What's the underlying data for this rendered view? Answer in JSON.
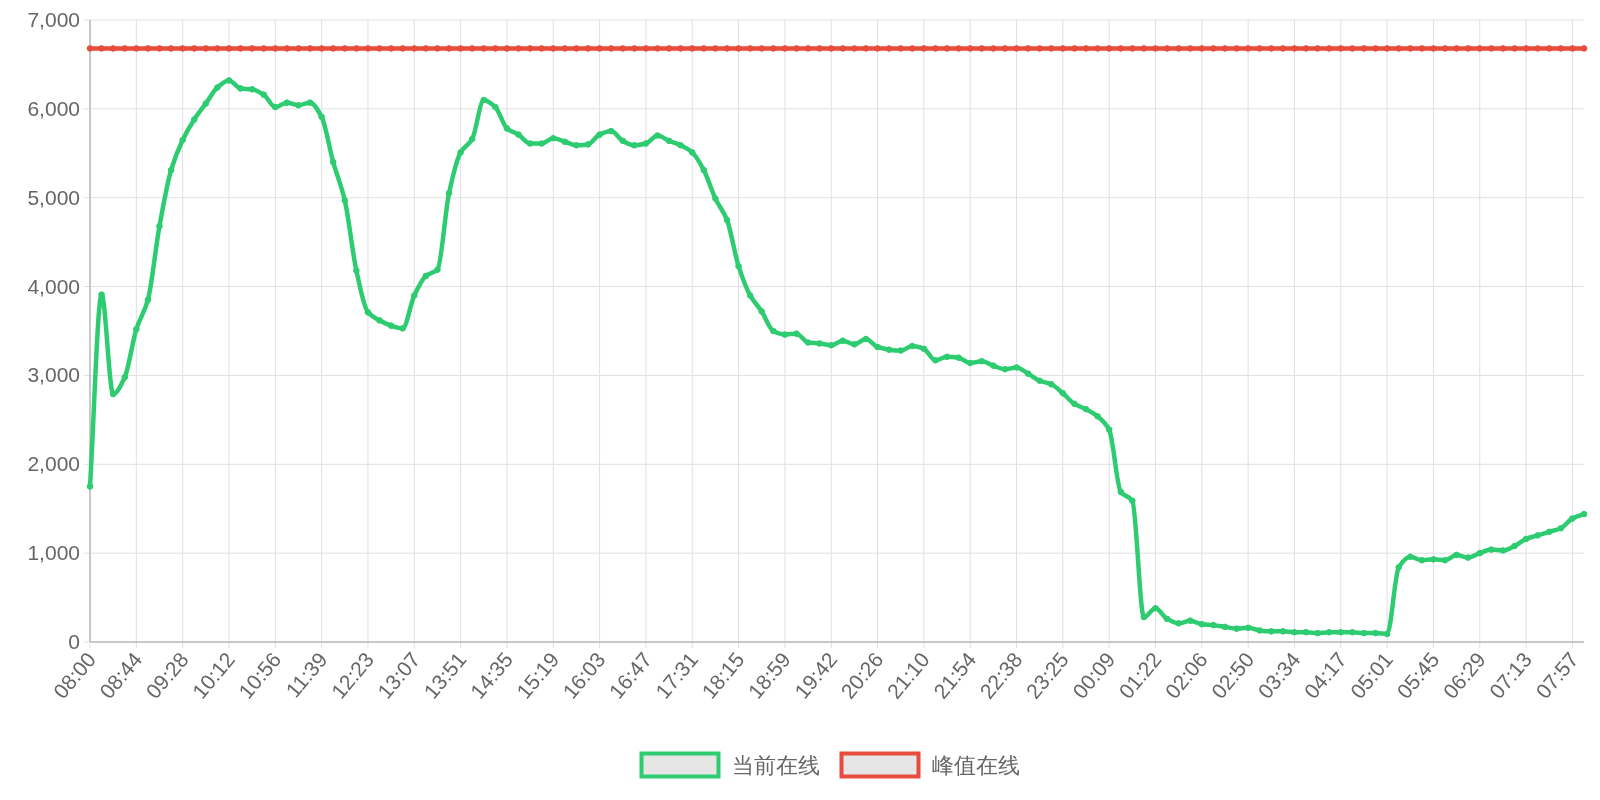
{
  "chart_data": {
    "type": "line",
    "categories": [
      "08:00",
      null,
      null,
      null,
      "08:44",
      null,
      null,
      null,
      "09:28",
      null,
      null,
      null,
      "10:12",
      null,
      null,
      null,
      "10:56",
      null,
      null,
      null,
      "11:39",
      null,
      null,
      null,
      "12:23",
      null,
      null,
      null,
      "13:07",
      null,
      null,
      null,
      "13:51",
      null,
      null,
      null,
      "14:35",
      null,
      null,
      null,
      "15:19",
      null,
      null,
      null,
      "16:03",
      null,
      null,
      null,
      "16:47",
      null,
      null,
      null,
      "17:31",
      null,
      null,
      null,
      "18:15",
      null,
      null,
      null,
      "18:59",
      null,
      null,
      null,
      "19:42",
      null,
      null,
      null,
      "20:26",
      null,
      null,
      null,
      "21:10",
      null,
      null,
      null,
      "21:54",
      null,
      null,
      null,
      "22:38",
      null,
      null,
      null,
      "23:25",
      null,
      null,
      null,
      "00:09",
      null,
      null,
      null,
      "01:22",
      null,
      null,
      null,
      "02:06",
      null,
      null,
      null,
      "02:50",
      null,
      null,
      null,
      "03:34",
      null,
      null,
      null,
      "04:17",
      null,
      null,
      null,
      "05:01",
      null,
      null,
      null,
      "05:45",
      null,
      null,
      null,
      "06:29",
      null,
      null,
      null,
      "07:13",
      null,
      null,
      null,
      "07:57",
      null
    ],
    "series": [
      {
        "name": "当前在线",
        "color": "#2ecc71",
        "values": [
          1750,
          3910,
          2790,
          2980,
          3520,
          3850,
          4680,
          5310,
          5650,
          5880,
          6060,
          6240,
          6320,
          6230,
          6220,
          6160,
          6020,
          6070,
          6040,
          6070,
          5910,
          5400,
          4970,
          4180,
          3710,
          3620,
          3560,
          3530,
          3900,
          4120,
          4190,
          5050,
          5510,
          5660,
          6100,
          6020,
          5780,
          5710,
          5610,
          5610,
          5670,
          5630,
          5590,
          5600,
          5710,
          5750,
          5640,
          5590,
          5610,
          5700,
          5640,
          5590,
          5510,
          5310,
          4990,
          4750,
          4230,
          3900,
          3720,
          3500,
          3460,
          3470,
          3370,
          3360,
          3340,
          3390,
          3350,
          3410,
          3320,
          3290,
          3280,
          3330,
          3300,
          3170,
          3210,
          3200,
          3140,
          3160,
          3110,
          3070,
          3090,
          3020,
          2940,
          2900,
          2800,
          2680,
          2620,
          2540,
          2390,
          1690,
          1590,
          280,
          380,
          260,
          210,
          240,
          200,
          190,
          170,
          150,
          160,
          130,
          120,
          120,
          110,
          110,
          100,
          110,
          110,
          110,
          100,
          100,
          90,
          840,
          960,
          920,
          930,
          920,
          980,
          950,
          1000,
          1040,
          1030,
          1080,
          1160,
          1200,
          1240,
          1280,
          1390,
          1440
        ]
      },
      {
        "name": "峰值在线",
        "color": "#e74c3c",
        "values": [
          6680,
          6680,
          6680,
          6680,
          6680,
          6680,
          6680,
          6680,
          6680,
          6680,
          6680,
          6680,
          6680,
          6680,
          6680,
          6680,
          6680,
          6680,
          6680,
          6680,
          6680,
          6680,
          6680,
          6680,
          6680,
          6680,
          6680,
          6680,
          6680,
          6680,
          6680,
          6680,
          6680,
          6680,
          6680,
          6680,
          6680,
          6680,
          6680,
          6680,
          6680,
          6680,
          6680,
          6680,
          6680,
          6680,
          6680,
          6680,
          6680,
          6680,
          6680,
          6680,
          6680,
          6680,
          6680,
          6680,
          6680,
          6680,
          6680,
          6680,
          6680,
          6680,
          6680,
          6680,
          6680,
          6680,
          6680,
          6680,
          6680,
          6680,
          6680,
          6680,
          6680,
          6680,
          6680,
          6680,
          6680,
          6680,
          6680,
          6680,
          6680,
          6680,
          6680,
          6680,
          6680,
          6680,
          6680,
          6680,
          6680,
          6680,
          6680,
          6680,
          6680,
          6680,
          6680,
          6680,
          6680,
          6680,
          6680,
          6680,
          6680,
          6680,
          6680,
          6680,
          6680,
          6680,
          6680,
          6680,
          6680,
          6680,
          6680,
          6680,
          6680,
          6680,
          6680,
          6680,
          6680,
          6680,
          6680,
          6680,
          6680,
          6680,
          6680,
          6680,
          6680,
          6680,
          6680,
          6680,
          6680,
          6680
        ]
      }
    ],
    "ylim": [
      0,
      7000
    ],
    "yticks": [
      0,
      {
        "value": 1000,
        "label": "1,000"
      },
      {
        "value": 2000,
        "label": "2,000"
      },
      {
        "value": 3000,
        "label": "3,000"
      },
      {
        "value": 4000,
        "label": "4,000"
      },
      {
        "value": 5000,
        "label": "5,000"
      },
      {
        "value": 6000,
        "label": "6,000"
      },
      {
        "value": 7000,
        "label": "7,000"
      }
    ],
    "grid": true,
    "legend": "bottom",
    "marker": "circle",
    "line_style": "solid"
  }
}
